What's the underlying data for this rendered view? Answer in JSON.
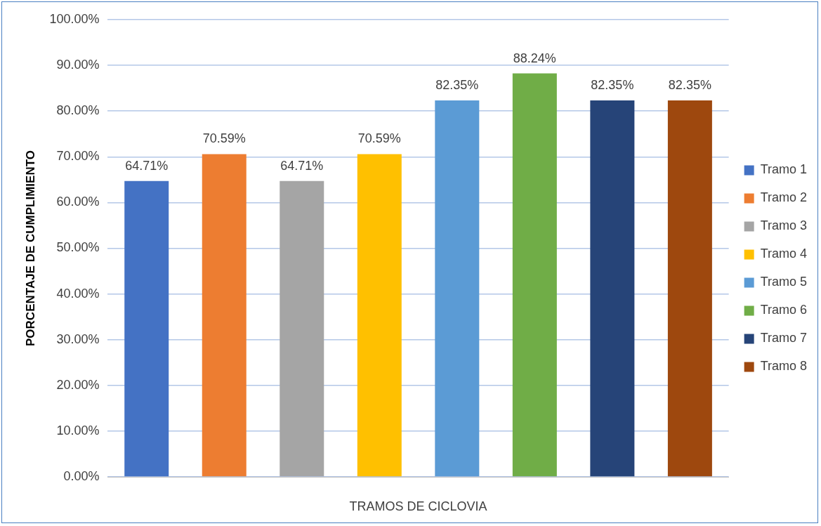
{
  "chart_data": {
    "type": "bar",
    "xlabel": "TRAMOS DE CICLOVIA",
    "ylabel": "PORCENTAJE DE CUMPLIMIENTO",
    "categories": [
      null
    ],
    "series": [
      {
        "name": "Tramo 1",
        "color": "#4472c4",
        "values": [
          64.71
        ],
        "value_labels": [
          "64.71%"
        ]
      },
      {
        "name": "Tramo 2",
        "color": "#ed7d31",
        "values": [
          70.59
        ],
        "value_labels": [
          "70.59%"
        ]
      },
      {
        "name": "Tramo 3",
        "color": "#a5a5a5",
        "values": [
          64.71
        ],
        "value_labels": [
          "64.71%"
        ]
      },
      {
        "name": "Tramo 4",
        "color": "#ffc000",
        "values": [
          70.59
        ],
        "value_labels": [
          "70.59%"
        ]
      },
      {
        "name": "Tramo 5",
        "color": "#5b9bd5",
        "values": [
          82.35
        ],
        "value_labels": [
          "82.35%"
        ]
      },
      {
        "name": "Tramo 6",
        "color": "#70ad47",
        "values": [
          88.24
        ],
        "value_labels": [
          "88.24%"
        ]
      },
      {
        "name": "Tramo 7",
        "color": "#264478",
        "values": [
          82.35
        ],
        "value_labels": [
          "82.35%"
        ]
      },
      {
        "name": "Tramo 8",
        "color": "#9e480e",
        "values": [
          82.35
        ],
        "value_labels": [
          "82.35%"
        ]
      }
    ],
    "ylim": [
      0,
      100
    ],
    "yticks": [
      {
        "value": 0,
        "label": "0.00%"
      },
      {
        "value": 10,
        "label": "10.00%"
      },
      {
        "value": 20,
        "label": "20.00%"
      },
      {
        "value": 30,
        "label": "30.00%"
      },
      {
        "value": 40,
        "label": "40.00%"
      },
      {
        "value": 50,
        "label": "50.00%"
      },
      {
        "value": 60,
        "label": "60.00%"
      },
      {
        "value": 70,
        "label": "70.00%"
      },
      {
        "value": 80,
        "label": "80.00%"
      },
      {
        "value": 90,
        "label": "90.00%"
      },
      {
        "value": 100,
        "label": "100.00%"
      }
    ],
    "grid": "y",
    "legend": "right"
  }
}
